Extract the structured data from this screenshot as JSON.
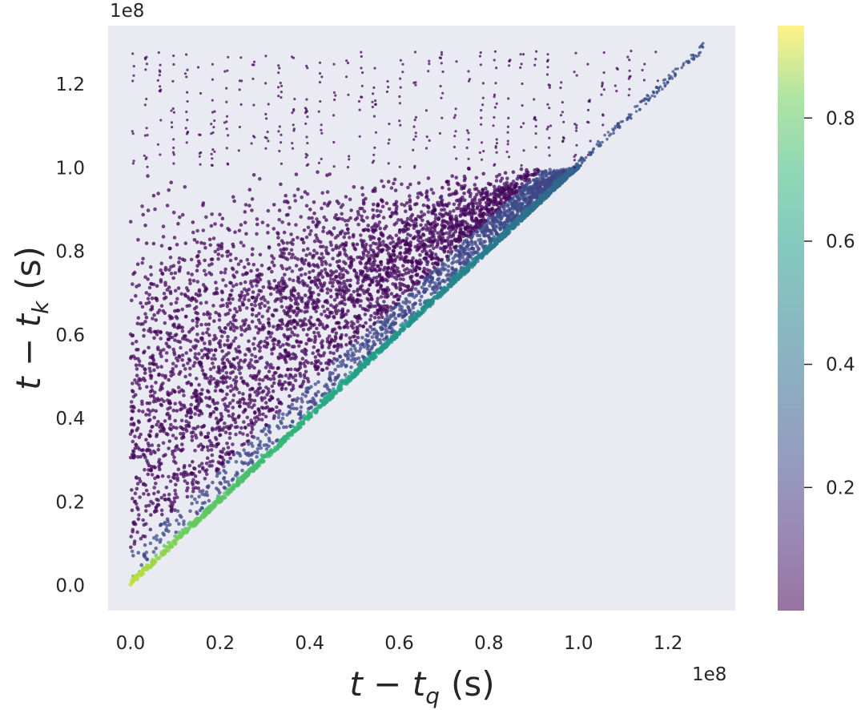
{
  "chart_data": {
    "type": "scatter",
    "description_free": true,
    "xlabel_main": "t − t",
    "xlabel_sub": "q",
    "xlabel_unit": "(s)",
    "ylabel_main": "t − t",
    "ylabel_sub": "k",
    "ylabel_unit": "(s)",
    "x_offset_text": "1e8",
    "y_offset_text": "1e8",
    "xlim": [
      -0.05,
      1.35
    ],
    "ylim": [
      -0.06,
      1.34
    ],
    "x_ticks": [
      0.0,
      0.2,
      0.4,
      0.6,
      0.8,
      1.0,
      1.2
    ],
    "x_tick_labels": [
      "0.0",
      "0.2",
      "0.4",
      "0.6",
      "0.8",
      "1.0",
      "1.2"
    ],
    "y_ticks": [
      0.0,
      0.2,
      0.4,
      0.6,
      0.8,
      1.0,
      1.2
    ],
    "y_tick_labels": [
      "0.0",
      "0.2",
      "0.4",
      "0.6",
      "0.8",
      "1.0",
      "1.2"
    ],
    "colorbar": {
      "cmap": "viridis",
      "alpha": 0.55,
      "range": [
        0.0,
        0.95
      ],
      "ticks": [
        0.2,
        0.4,
        0.6,
        0.8
      ],
      "tick_labels": [
        "0.2",
        "0.4",
        "0.6",
        "0.8"
      ]
    },
    "regions": [
      {
        "name": "dense-triangle",
        "x_from": 0.0,
        "x_to": 1.0,
        "y_from": 0.0,
        "y_to": 1.0,
        "constraint": "y >= x",
        "density": "high",
        "value_range": [
          0.0,
          0.15
        ]
      },
      {
        "name": "diagonal-band",
        "relation": "y ≈ x",
        "x_from": 0.0,
        "x_to": 1.0,
        "value_range": [
          0.95,
          0.35
        ]
      },
      {
        "name": "sparse-upper-band",
        "x_from": 0.0,
        "x_to": 1.28,
        "y_from": 1.0,
        "y_to": 1.28,
        "density": "low",
        "value_range": [
          0.0,
          0.1
        ]
      }
    ],
    "grid": false,
    "background": "#eaeaf2"
  }
}
